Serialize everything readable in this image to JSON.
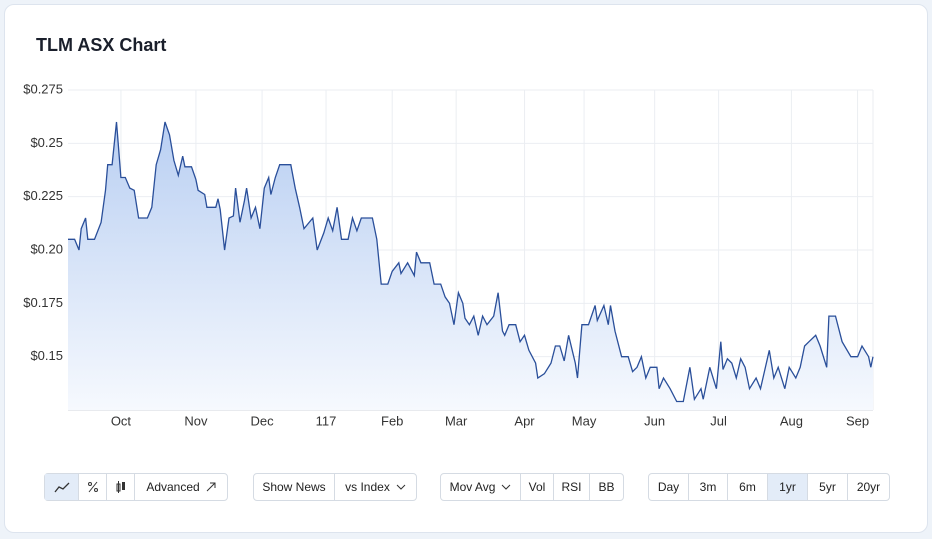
{
  "chart_data": {
    "type": "area",
    "title": "TLM ASX Chart",
    "x": [
      0,
      3,
      5,
      6,
      8,
      9,
      12,
      15,
      17,
      18,
      20,
      22,
      23,
      24,
      26,
      28,
      30,
      32,
      36,
      38,
      40,
      42,
      44,
      46,
      48,
      50,
      52,
      53,
      56,
      58,
      59,
      62,
      63,
      67,
      68,
      69,
      71,
      73,
      75,
      76,
      78,
      80,
      81,
      83,
      85,
      87,
      89,
      91,
      92,
      94,
      96,
      101,
      103,
      105,
      107,
      111,
      113,
      116,
      118,
      120,
      122,
      124,
      127,
      129,
      131,
      133,
      138,
      140,
      142,
      145,
      147,
      150,
      151,
      154,
      157,
      158,
      160,
      164,
      166,
      169,
      171,
      173,
      175,
      177,
      179,
      180,
      182,
      184,
      186,
      188,
      190,
      193,
      195,
      197,
      198,
      200,
      203,
      205,
      207,
      209,
      212,
      213,
      216,
      219,
      221,
      223,
      225,
      227,
      230,
      231,
      233,
      236,
      239,
      240,
      243,
      245,
      246,
      248,
      251,
      254,
      256,
      258,
      260,
      262,
      264,
      267,
      268,
      270,
      273,
      276,
      279,
      282,
      284,
      287,
      288,
      291,
      294,
      296,
      297,
      299,
      301,
      303,
      305,
      307,
      309,
      312,
      314,
      316,
      318,
      320,
      322,
      325,
      327,
      330,
      332,
      334,
      336,
      339,
      341,
      344,
      345,
      348,
      351,
      355,
      358,
      360,
      363,
      364,
      365
    ],
    "series": [
      {
        "color": "#2a4f9a",
        "values": [
          0.205,
          0.205,
          0.2,
          0.21,
          0.215,
          0.205,
          0.205,
          0.213,
          0.228,
          0.24,
          0.24,
          0.26,
          0.247,
          0.234,
          0.234,
          0.229,
          0.228,
          0.215,
          0.215,
          0.22,
          0.24,
          0.247,
          0.26,
          0.254,
          0.242,
          0.235,
          0.244,
          0.239,
          0.239,
          0.233,
          0.228,
          0.226,
          0.22,
          0.22,
          0.224,
          0.219,
          0.2,
          0.215,
          0.216,
          0.229,
          0.213,
          0.223,
          0.229,
          0.215,
          0.22,
          0.21,
          0.229,
          0.234,
          0.226,
          0.234,
          0.24,
          0.24,
          0.229,
          0.22,
          0.21,
          0.215,
          0.2,
          0.208,
          0.215,
          0.209,
          0.22,
          0.205,
          0.205,
          0.215,
          0.209,
          0.215,
          0.215,
          0.205,
          0.184,
          0.184,
          0.19,
          0.194,
          0.189,
          0.194,
          0.188,
          0.199,
          0.194,
          0.194,
          0.184,
          0.184,
          0.178,
          0.175,
          0.165,
          0.18,
          0.175,
          0.168,
          0.165,
          0.169,
          0.16,
          0.169,
          0.165,
          0.169,
          0.18,
          0.162,
          0.16,
          0.165,
          0.165,
          0.157,
          0.16,
          0.153,
          0.147,
          0.14,
          0.142,
          0.147,
          0.155,
          0.155,
          0.148,
          0.16,
          0.147,
          0.14,
          0.165,
          0.165,
          0.174,
          0.167,
          0.174,
          0.165,
          0.174,
          0.162,
          0.15,
          0.15,
          0.143,
          0.145,
          0.15,
          0.14,
          0.145,
          0.145,
          0.135,
          0.14,
          0.135,
          0.129,
          0.129,
          0.145,
          0.13,
          0.135,
          0.13,
          0.145,
          0.135,
          0.157,
          0.144,
          0.149,
          0.147,
          0.14,
          0.149,
          0.145,
          0.135,
          0.14,
          0.135,
          0.144,
          0.153,
          0.14,
          0.145,
          0.135,
          0.145,
          0.14,
          0.145,
          0.155,
          0.157,
          0.16,
          0.155,
          0.145,
          0.169,
          0.169,
          0.157,
          0.15,
          0.15,
          0.155,
          0.15,
          0.145,
          0.15
        ]
      }
    ],
    "xlim": [
      0,
      365
    ],
    "xticks": [
      {
        "value": 24,
        "label": "Oct"
      },
      {
        "value": 58,
        "label": "Nov"
      },
      {
        "value": 88,
        "label": "Dec"
      },
      117,
      {
        "value": 147,
        "label": "Feb"
      },
      {
        "value": 176,
        "label": "Mar"
      },
      {
        "value": 207,
        "label": "Apr"
      },
      {
        "value": 234,
        "label": "May"
      },
      {
        "value": 266,
        "label": "Jun"
      },
      {
        "value": 295,
        "label": "Jul"
      },
      {
        "value": 328,
        "label": "Aug"
      },
      {
        "value": 358,
        "label": "Sep"
      }
    ],
    "ylim": [
      0.125,
      0.275
    ],
    "yticks": [
      {
        "value": 0.15,
        "label": "$0.15"
      },
      {
        "value": 0.175,
        "label": "$0.175"
      },
      {
        "value": 0.2,
        "label": "$0.20"
      },
      {
        "value": 0.225,
        "label": "$0.225"
      },
      {
        "value": 0.25,
        "label": "$0.25"
      },
      {
        "value": 0.275,
        "label": "$0.275"
      }
    ],
    "grid": true
  },
  "toolbar": [
    [
      "Advanced"
    ],
    [
      "Show News",
      "vs Index"
    ],
    [
      "Mov Avg",
      "Vol",
      "RSI",
      "BB"
    ],
    [
      "Day",
      "3m",
      "6m",
      "1yr",
      "5yr",
      "20yr"
    ]
  ]
}
